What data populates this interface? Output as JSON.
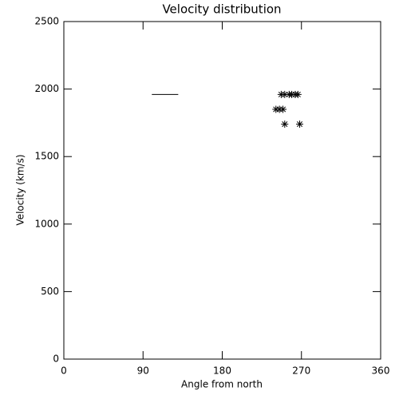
{
  "chart_data": {
    "type": "scatter",
    "title": "Velocity distribution",
    "x_label": "Angle from north",
    "y_label": "Velocity (km/s)",
    "xlim": [
      0,
      360
    ],
    "xticks": [
      0,
      90,
      180,
      270,
      360
    ],
    "ylim": [
      0,
      2500
    ],
    "yticks": [
      0,
      500,
      1000,
      1500,
      2000,
      2500
    ],
    "series": [
      {
        "type": "line",
        "color": "#000000",
        "x": [
          100,
          130
        ],
        "values": [
          1960,
          1960
        ]
      },
      {
        "type": "scatter",
        "marker": "asterisk",
        "color": "#000000",
        "x": [
          247,
          251,
          256,
          259,
          263,
          266,
          241,
          245,
          249,
          251,
          268
        ],
        "values": [
          1960,
          1960,
          1960,
          1960,
          1960,
          1960,
          1850,
          1850,
          1850,
          1740,
          1740
        ]
      }
    ]
  }
}
